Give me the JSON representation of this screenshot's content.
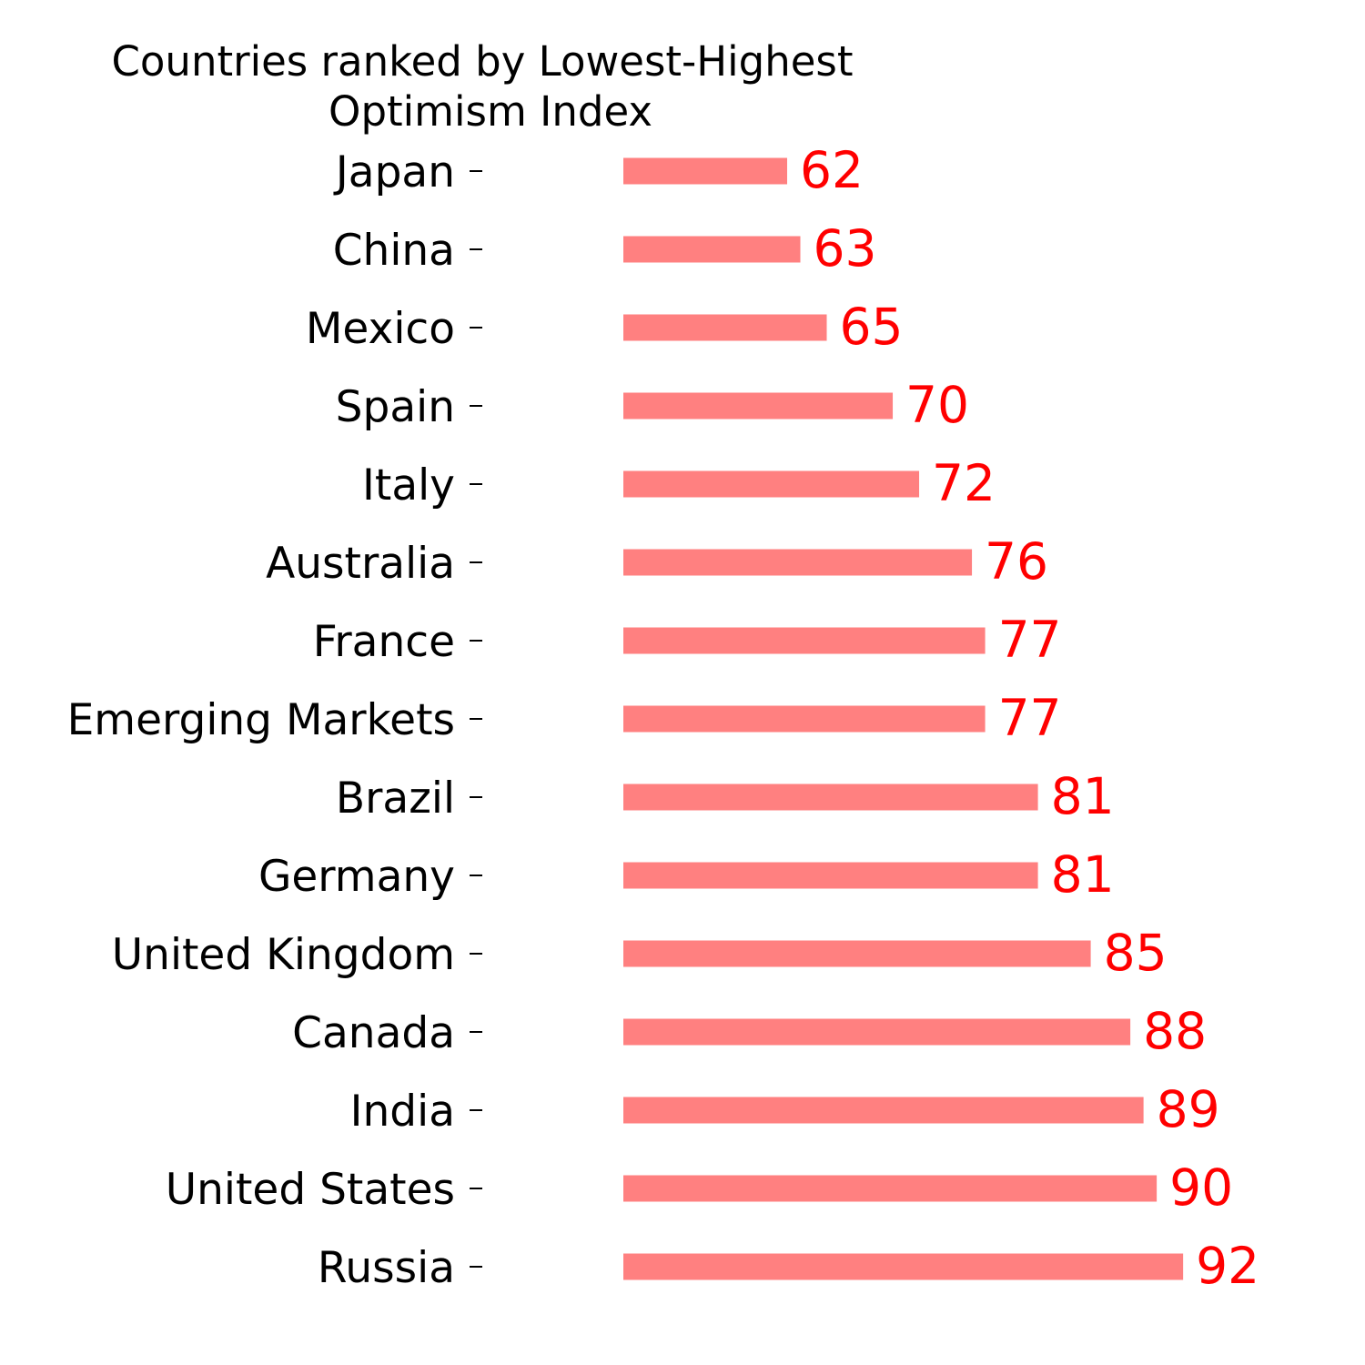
{
  "chart_data": {
    "type": "bar",
    "orientation": "horizontal",
    "title_lines": [
      "Countries ranked by Lowest-Highest",
      "Optimism Index"
    ],
    "categories": [
      "Japan",
      "China",
      "Mexico",
      "Spain",
      "Italy",
      "Australia",
      "France",
      "Emerging Markets",
      "Brazil",
      "Germany",
      "United Kingdom",
      "Canada",
      "India",
      "United States",
      "Russia"
    ],
    "values": [
      62,
      63,
      65,
      70,
      72,
      76,
      77,
      77,
      81,
      81,
      85,
      88,
      89,
      90,
      92
    ],
    "data_labels": [
      "62",
      "63",
      "65",
      "70",
      "72",
      "76",
      "77",
      "77",
      "81",
      "81",
      "85",
      "88",
      "89",
      "90",
      "92"
    ],
    "xlim": [
      50,
      95
    ],
    "xaxis_visible": false,
    "grid": false,
    "legend": "none",
    "colors": {
      "bar": "#ff8080",
      "data_label": "#ff0000",
      "text": "#000000"
    }
  }
}
